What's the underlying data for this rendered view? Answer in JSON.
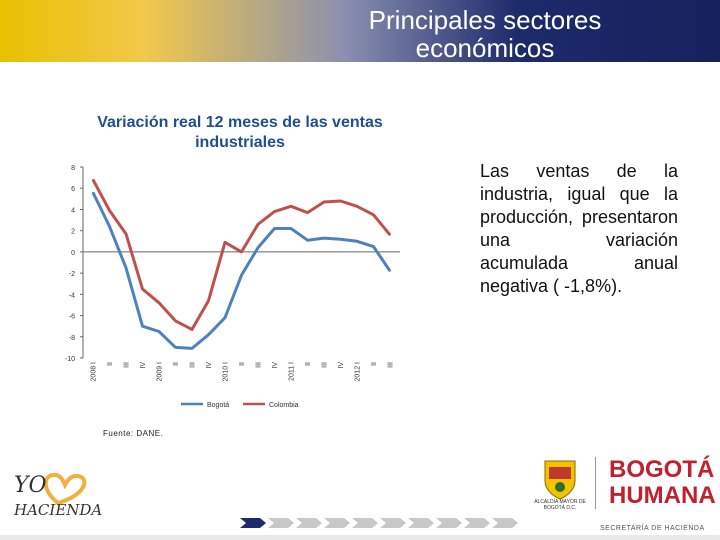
{
  "header": {
    "title_line1": "Principales sectores",
    "title_line2": "económicos"
  },
  "chart_data": {
    "type": "line",
    "title": "Variación real 12 meses de las ventas industriales",
    "ylim": [
      -10,
      8
    ],
    "yticks": [
      "8",
      "6",
      "4",
      "2",
      "0",
      "-2",
      "-4",
      "-6",
      "-8",
      "-10"
    ],
    "xticks": [
      "2008 I",
      "II",
      "III",
      "IV",
      "2009 I",
      "II",
      "III",
      "IV",
      "2010 I",
      "II",
      "III",
      "IV",
      "2011 I",
      "II",
      "III",
      "IV",
      "2012 I",
      "II",
      "III"
    ],
    "legend_position": "bottom",
    "series": [
      {
        "name": "Bogotá",
        "color": "#4f81bd",
        "values": [
          5.6,
          2.4,
          -1.5,
          -7.0,
          -7.5,
          -9.0,
          -9.1,
          -7.8,
          -6.2,
          -2.2,
          0.4,
          2.2,
          2.2,
          1.1,
          1.3,
          1.2,
          1.0,
          0.5,
          -1.8
        ]
      },
      {
        "name": "Colombia",
        "color": "#c0504d",
        "values": [
          6.8,
          3.9,
          1.7,
          -3.5,
          -4.8,
          -6.5,
          -7.3,
          -4.6,
          0.9,
          0.0,
          2.6,
          3.8,
          4.3,
          3.7,
          4.7,
          4.8,
          4.3,
          3.5,
          1.6
        ]
      }
    ]
  },
  "side_text": "Las ventas de la industria, igual que la producción, presentaron una variación acumulada anual negativa ( -1,8%).",
  "source": "Fuente: DANE.",
  "logo_left": {
    "line1": "YO",
    "line2": "HACIENDA"
  },
  "logo_right": {
    "alcaldia": "ALCALDÍA MAYOR DE BOGOTÁ D.C.",
    "brand1": "BOGOTÁ",
    "brand2": "HUMANA"
  },
  "footer": {
    "secretaria": "SECRETARÍA DE HACIENDA"
  }
}
